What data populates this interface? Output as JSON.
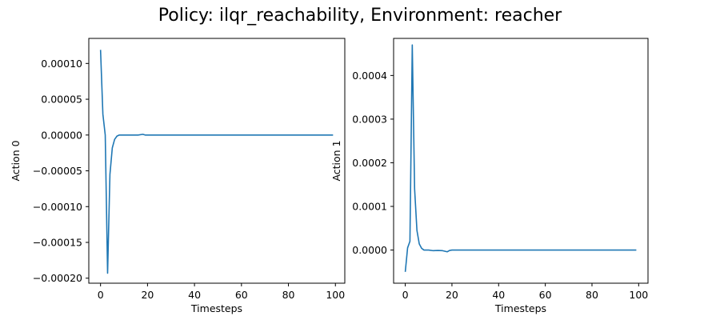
{
  "figure": {
    "title": "Policy: ilqr_reachability, Environment: reacher"
  },
  "chart_data": [
    {
      "type": "line",
      "xlabel": "Timesteps",
      "ylabel": "Action 0",
      "xlim": [
        -5,
        104
      ],
      "ylim": [
        -0.000207,
        0.000135
      ],
      "xticks": [
        0,
        20,
        40,
        60,
        80,
        100
      ],
      "xtick_labels": [
        "0",
        "20",
        "40",
        "60",
        "80",
        "100"
      ],
      "yticks": [
        0.0001,
        5e-05,
        0.0,
        -5e-05,
        -0.0001,
        -0.00015,
        -0.0002
      ],
      "ytick_labels": [
        "0.00010",
        "0.00005",
        "0.00000",
        "−0.00005",
        "−0.00010",
        "−0.00015",
        "−0.00020"
      ],
      "grid": false,
      "color": "#1f77b4",
      "series": [
        {
          "x": [
            0,
            1,
            2,
            3,
            4,
            5,
            6,
            7,
            8,
            9,
            10,
            12,
            14,
            16,
            18,
            19,
            20,
            25,
            30,
            40,
            50,
            60,
            70,
            80,
            90,
            99
          ],
          "y": [
            0.000119,
            2.9e-05,
            0.0,
            -0.000193,
            -5.5e-05,
            -1.8e-05,
            -6e-06,
            -1.5e-06,
            0.0,
            0.0,
            0.0,
            0.0,
            0.0,
            0.0,
            1e-06,
            0.0,
            0.0,
            0.0,
            0.0,
            0.0,
            0.0,
            0.0,
            0.0,
            0.0,
            0.0,
            0.0
          ]
        }
      ]
    },
    {
      "type": "line",
      "xlabel": "Timesteps",
      "ylabel": "Action 1",
      "xlim": [
        -5,
        104
      ],
      "ylim": [
        -7.6e-05,
        0.000485
      ],
      "xticks": [
        0,
        20,
        40,
        60,
        80,
        100
      ],
      "xtick_labels": [
        "0",
        "20",
        "40",
        "60",
        "80",
        "100"
      ],
      "yticks": [
        0.0004,
        0.0003,
        0.0002,
        0.0001,
        0.0
      ],
      "ytick_labels": [
        "0.0004",
        "0.0003",
        "0.0002",
        "0.0001",
        "0.0000"
      ],
      "grid": false,
      "color": "#1f77b4",
      "series": [
        {
          "x": [
            0,
            1,
            2,
            3,
            4,
            5,
            6,
            7,
            8,
            9,
            10,
            12,
            14,
            16,
            18,
            19,
            20,
            25,
            30,
            40,
            50,
            60,
            70,
            80,
            90,
            99
          ],
          "y": [
            -5e-05,
            5e-06,
            2e-05,
            0.00047,
            0.00014,
            4.5e-05,
            1.4e-05,
            4e-06,
            0.0,
            0.0,
            0.0,
            -1.5e-06,
            -1e-06,
            -1.5e-06,
            -4e-06,
            -1e-06,
            0.0,
            0.0,
            0.0,
            0.0,
            0.0,
            0.0,
            0.0,
            0.0,
            0.0,
            0.0
          ]
        }
      ]
    }
  ]
}
